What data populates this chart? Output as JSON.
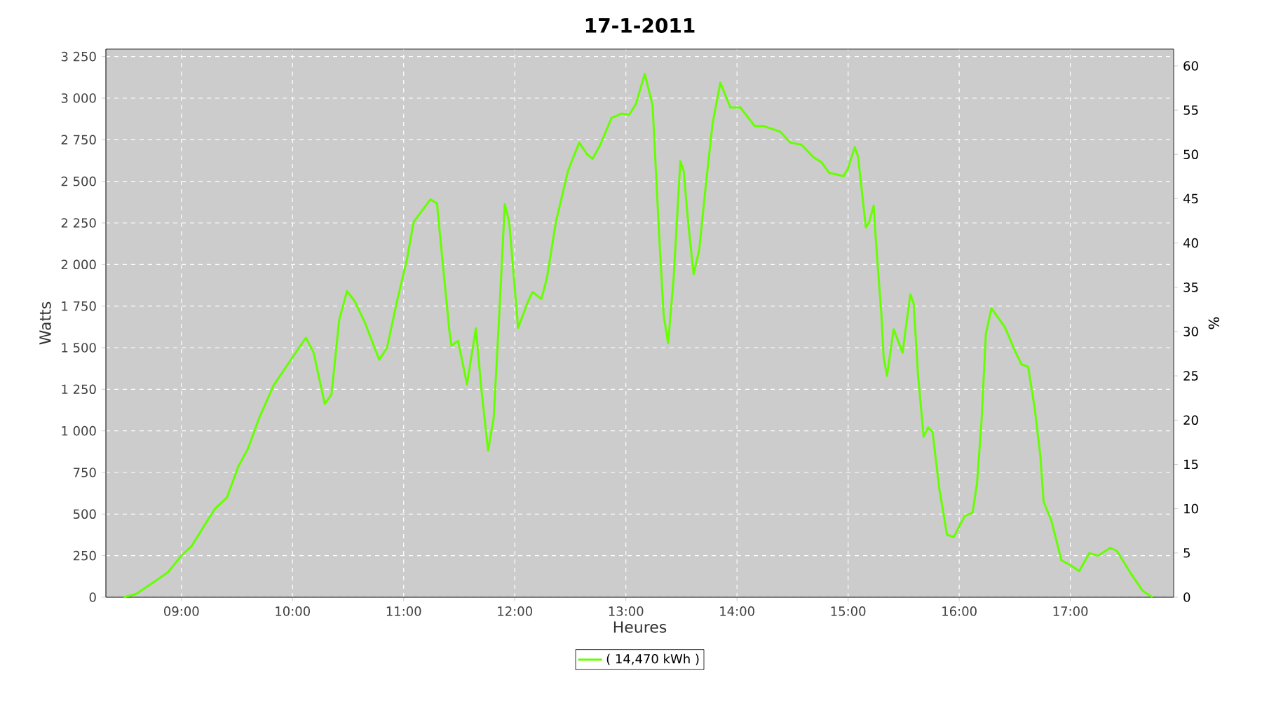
{
  "chart_data": {
    "type": "line",
    "title": "17-1-2011",
    "xlabel": "Heures",
    "ylabel": "Watts",
    "y2label": "%",
    "x": [
      8.48,
      8.59,
      8.76,
      8.88,
      9.0,
      9.09,
      9.22,
      9.3,
      9.41,
      9.51,
      9.6,
      9.7,
      9.83,
      10.0,
      10.12,
      10.19,
      10.29,
      10.35,
      10.42,
      10.49,
      10.56,
      10.65,
      10.78,
      10.85,
      10.94,
      11.03,
      11.09,
      11.24,
      11.3,
      11.34,
      11.41,
      11.43,
      11.49,
      11.57,
      11.65,
      11.7,
      11.76,
      11.81,
      11.86,
      11.91,
      11.95,
      12.03,
      12.12,
      12.16,
      12.24,
      12.29,
      12.37,
      12.48,
      12.58,
      12.65,
      12.7,
      12.77,
      12.87,
      12.96,
      13.03,
      13.09,
      13.17,
      13.24,
      13.3,
      13.34,
      13.38,
      13.43,
      13.49,
      13.52,
      13.56,
      13.61,
      13.66,
      13.72,
      13.78,
      13.85,
      13.94,
      14.03,
      14.16,
      14.24,
      14.39,
      14.48,
      14.58,
      14.69,
      14.76,
      14.83,
      14.96,
      15.0,
      15.06,
      15.09,
      15.14,
      15.16,
      15.19,
      15.23,
      15.25,
      15.3,
      15.32,
      15.35,
      15.41,
      15.49,
      15.56,
      15.59,
      15.63,
      15.68,
      15.72,
      15.76,
      15.82,
      15.89,
      15.95,
      16.05,
      16.12,
      16.16,
      16.2,
      16.24,
      16.29,
      16.35,
      16.41,
      16.5,
      16.56,
      16.62,
      16.68,
      16.73,
      16.76,
      16.83,
      16.92,
      17.0,
      17.08,
      17.17,
      17.25,
      17.36,
      17.42,
      17.55,
      17.65,
      17.74
    ],
    "series": [
      {
        "name": "( 14,470 kWh )",
        "color": "#66ff00",
        "values": [
          0,
          19,
          95,
          151,
          250,
          306,
          446,
          530,
          600,
          783,
          895,
          1078,
          1274,
          1442,
          1560,
          1470,
          1162,
          1218,
          1667,
          1840,
          1779,
          1653,
          1428,
          1499,
          1779,
          2032,
          2256,
          2391,
          2368,
          2088,
          1611,
          1512,
          1541,
          1280,
          1617,
          1246,
          881,
          1078,
          1695,
          2363,
          2256,
          1619,
          1779,
          1835,
          1793,
          1920,
          2256,
          2565,
          2733,
          2663,
          2635,
          2720,
          2880,
          2907,
          2900,
          2964,
          3146,
          2958,
          2172,
          1695,
          1527,
          1920,
          2621,
          2565,
          2256,
          1942,
          2088,
          2481,
          2846,
          3093,
          2944,
          2944,
          2832,
          2832,
          2798,
          2733,
          2720,
          2644,
          2615,
          2551,
          2531,
          2579,
          2705,
          2649,
          2341,
          2223,
          2256,
          2354,
          2144,
          1695,
          1442,
          1330,
          1611,
          1470,
          1821,
          1765,
          1330,
          965,
          1021,
          994,
          657,
          376,
          362,
          488,
          508,
          685,
          1049,
          1583,
          1737,
          1681,
          1625,
          1484,
          1400,
          1386,
          1133,
          853,
          573,
          460,
          221,
          194,
          157,
          264,
          250,
          297,
          278,
          137,
          39,
          0
        ]
      }
    ],
    "xlim": [
      8.32,
      17.93
    ],
    "xticks": [
      {
        "value": 9,
        "label": "09:00"
      },
      {
        "value": 10,
        "label": "10:00"
      },
      {
        "value": 11,
        "label": "11:00"
      },
      {
        "value": 12,
        "label": "12:00"
      },
      {
        "value": 13,
        "label": "13:00"
      },
      {
        "value": 14,
        "label": "14:00"
      },
      {
        "value": 15,
        "label": "15:00"
      },
      {
        "value": 16,
        "label": "16:00"
      },
      {
        "value": 17,
        "label": "17:00"
      }
    ],
    "ylim": [
      0,
      3295
    ],
    "yticks": [
      0,
      250,
      500,
      750,
      {
        "value": 1000,
        "label": "1 000"
      },
      {
        "value": 1250,
        "label": "1 250"
      },
      {
        "value": 1500,
        "label": "1 500"
      },
      {
        "value": 1750,
        "label": "1 750"
      },
      {
        "value": 2000,
        "label": "2 000"
      },
      {
        "value": 2250,
        "label": "2 250"
      },
      {
        "value": 2500,
        "label": "2 500"
      },
      {
        "value": 2750,
        "label": "2 750"
      },
      {
        "value": 3000,
        "label": "3 000"
      },
      {
        "value": 3250,
        "label": "3 250"
      }
    ],
    "y2lim": [
      0,
      61.9
    ],
    "y2ticks": [
      0,
      5,
      10,
      15,
      20,
      25,
      30,
      35,
      40,
      45,
      50,
      55,
      60
    ],
    "grid": true,
    "legend": "bottom",
    "marker": "none",
    "line_style": "solid"
  }
}
